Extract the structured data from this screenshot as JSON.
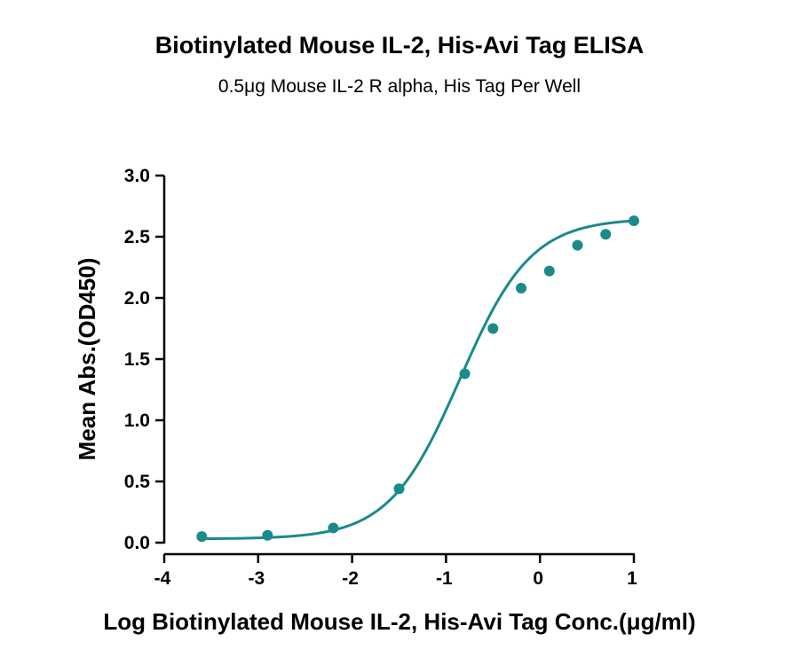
{
  "chart_data": {
    "type": "scatter",
    "title": "Biotinylated Mouse IL-2, His-Avi Tag ELISA",
    "subtitle": "0.5μg Mouse IL-2 R alpha, His Tag Per Well",
    "xlabel": "Log Biotinylated Mouse IL-2, His-Avi Tag Conc.(μg/ml)",
    "ylabel": "Mean Abs.(OD450)",
    "xlim": [
      -4,
      1
    ],
    "ylim": [
      0,
      3.0
    ],
    "x_ticks": [
      "-4",
      "-3",
      "-2",
      "-1",
      "0",
      "1"
    ],
    "y_ticks": [
      "0.0",
      "0.5",
      "1.0",
      "1.5",
      "2.0",
      "2.5",
      "3.0"
    ],
    "series": [
      {
        "x": [
          -3.6,
          -2.9,
          -2.2,
          -1.5,
          -0.8,
          -0.5,
          -0.2,
          0.1,
          0.4,
          0.7,
          1.0
        ],
        "y": [
          0.05,
          0.06,
          0.12,
          0.44,
          1.38,
          1.75,
          2.08,
          2.22,
          2.43,
          2.52,
          2.63
        ]
      }
    ],
    "fit_curve": {
      "model": "4PL",
      "bottom": 0.03,
      "top": 2.65,
      "log_ec50": -0.85,
      "hill_slope": 1.15
    },
    "grid": false,
    "colors": {
      "series": "#1a8a8a",
      "axis": "#000000"
    }
  }
}
